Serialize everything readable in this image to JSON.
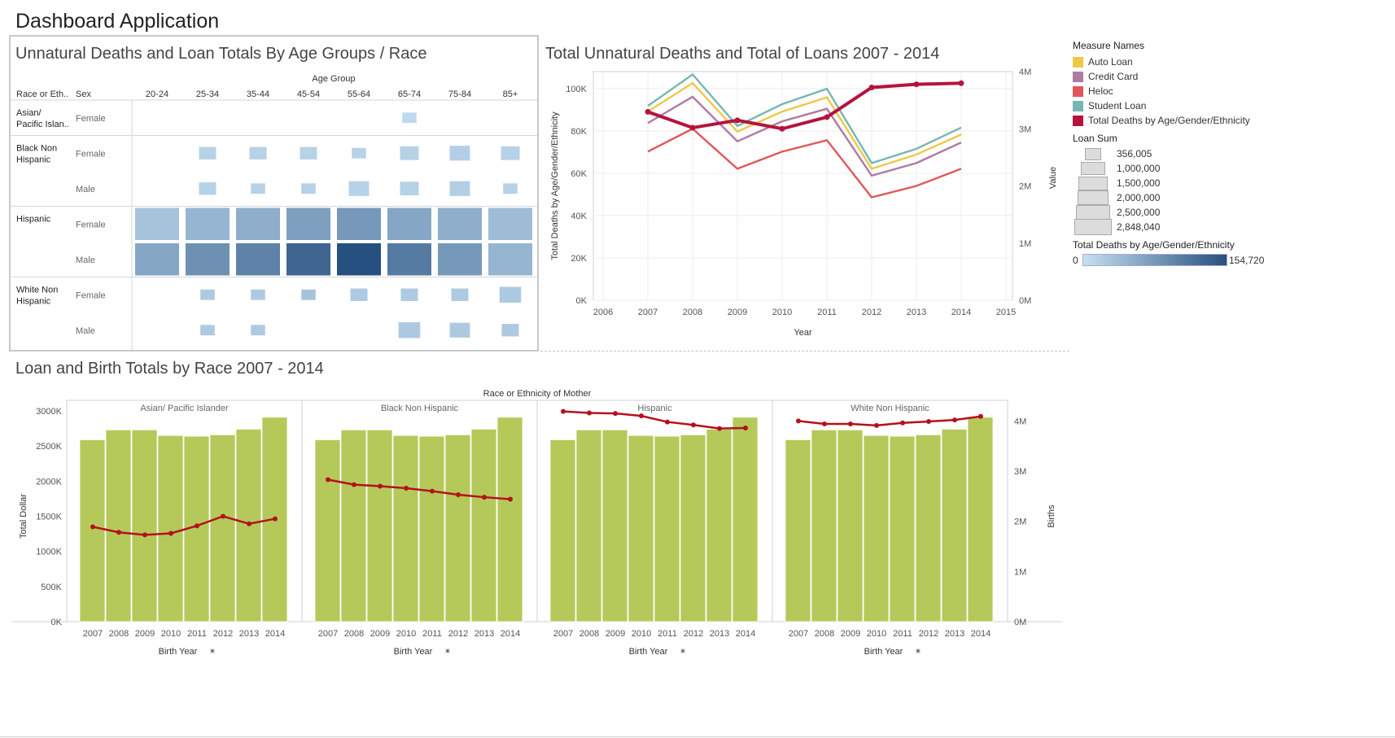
{
  "app": {
    "title": "Dashboard Application"
  },
  "colors": {
    "auto_loan": "#edc948",
    "credit_card": "#b07aa1",
    "heloc": "#e15759",
    "student_loan": "#76b7b2",
    "total_deaths": "#b5133d",
    "bar": "#b5c95a",
    "births_line": "#b5101e",
    "heat_low": "#c6e0f3",
    "heat_high": "#26507f"
  },
  "chart_data": [
    {
      "type": "heatmap",
      "title": "Unnatural Deaths and Loan Totals By Age Groups / Race",
      "column_group_label": "Age Group",
      "row_header_1": "Race or Eth..",
      "row_header_2": "Sex",
      "columns": [
        "20-24",
        "25-34",
        "35-44",
        "45-54",
        "55-64",
        "65-74",
        "75-84",
        "85+"
      ],
      "groups": [
        {
          "race": "Asian/ Pacific Islan..",
          "rows": [
            {
              "sex": "Female",
              "cells": [
                null,
                null,
                null,
                null,
                null,
                [
                  0.35,
                  0.05
                ],
                null,
                null
              ]
            }
          ]
        },
        {
          "race": "Black Non Hispanic",
          "rows": [
            {
              "sex": "Female",
              "cells": [
                null,
                [
                  0.5,
                  0.1
                ],
                [
                  0.5,
                  0.1
                ],
                [
                  0.5,
                  0.1
                ],
                [
                  0.35,
                  0.1
                ],
                [
                  0.6,
                  0.1
                ],
                [
                  0.7,
                  0.12
                ],
                [
                  0.6,
                  0.1
                ]
              ]
            },
            {
              "sex": "Male",
              "cells": [
                null,
                [
                  0.5,
                  0.1
                ],
                [
                  0.35,
                  0.1
                ],
                [
                  0.35,
                  0.1
                ],
                [
                  0.7,
                  0.1
                ],
                [
                  0.6,
                  0.1
                ],
                [
                  0.7,
                  0.12
                ],
                [
                  0.35,
                  0.1
                ]
              ]
            }
          ]
        },
        {
          "race": "Hispanic",
          "rows": [
            {
              "sex": "Female",
              "cells": [
                [
                  1,
                  0.2
                ],
                [
                  1,
                  0.3
                ],
                [
                  1,
                  0.35
                ],
                [
                  1,
                  0.45
                ],
                [
                  1,
                  0.5
                ],
                [
                  1,
                  0.4
                ],
                [
                  1,
                  0.35
                ],
                [
                  1,
                  0.25
                ]
              ]
            },
            {
              "sex": "Male",
              "cells": [
                [
                  1,
                  0.4
                ],
                [
                  1,
                  0.55
                ],
                [
                  1,
                  0.65
                ],
                [
                  1,
                  0.85
                ],
                [
                  1,
                  1.0
                ],
                [
                  1,
                  0.7
                ],
                [
                  1,
                  0.5
                ],
                [
                  1,
                  0.3
                ]
              ]
            }
          ]
        },
        {
          "race": "White Non Hispanic",
          "rows": [
            {
              "sex": "Female",
              "cells": [
                null,
                [
                  0.35,
                  0.15
                ],
                [
                  0.35,
                  0.15
                ],
                [
                  0.35,
                  0.2
                ],
                [
                  0.5,
                  0.15
                ],
                [
                  0.5,
                  0.15
                ],
                [
                  0.5,
                  0.15
                ],
                [
                  0.8,
                  0.15
                ]
              ]
            },
            {
              "sex": "Male",
              "cells": [
                null,
                [
                  0.35,
                  0.15
                ],
                [
                  0.35,
                  0.15
                ],
                null,
                null,
                [
                  0.8,
                  0.15
                ],
                [
                  0.7,
                  0.15
                ],
                [
                  0.5,
                  0.15
                ]
              ]
            }
          ]
        }
      ]
    },
    {
      "type": "line",
      "title": "Total Unnatural Deaths and Total of Loans 2007 - 2014",
      "xlabel": "Year",
      "ylabel": "Total Deaths by Age/Gender/Ethnicity",
      "y2label": "Value",
      "x_ticks": [
        "2006",
        "2007",
        "2008",
        "2009",
        "2010",
        "2011",
        "2012",
        "2013",
        "2014",
        "2015"
      ],
      "xlim": [
        2006,
        2015
      ],
      "ylim": [
        0,
        108000
      ],
      "y2lim": [
        0,
        4000000
      ],
      "y_ticks": [
        "0K",
        "20K",
        "40K",
        "60K",
        "80K",
        "100K"
      ],
      "y2_ticks": [
        "0M",
        "1M",
        "2M",
        "3M",
        "4M"
      ],
      "x": [
        2007,
        2008,
        2009,
        2010,
        2011,
        2012,
        2013,
        2014
      ],
      "series": [
        {
          "name": "Auto Loan",
          "axis": "right",
          "values": [
            3300000,
            3800000,
            2950000,
            3300000,
            3550000,
            2300000,
            2550000,
            2900000
          ]
        },
        {
          "name": "Credit Card",
          "axis": "right",
          "values": [
            3100000,
            3560000,
            2780000,
            3130000,
            3350000,
            2180000,
            2400000,
            2760000
          ]
        },
        {
          "name": "Heloc",
          "axis": "right",
          "values": [
            2600000,
            3000000,
            2300000,
            2600000,
            2800000,
            1800000,
            2000000,
            2300000
          ]
        },
        {
          "name": "Student Loan",
          "axis": "right",
          "values": [
            3400000,
            3950000,
            3050000,
            3430000,
            3700000,
            2400000,
            2650000,
            3020000
          ]
        },
        {
          "name": "Total Deaths by Age/Gender/Ethnicity",
          "axis": "left",
          "values": [
            89000,
            81500,
            85000,
            81000,
            86500,
            100500,
            102000,
            102500
          ]
        }
      ]
    },
    {
      "type": "bar",
      "title": "Loan and Birth Totals by Race 2007 - 2014",
      "group_label": "Race or Ethnicity of Mother",
      "xlabel": "Birth Year",
      "ylabel": "Total Dollar",
      "y2label": "Births",
      "ylim": [
        0,
        3000000
      ],
      "y_ticks": [
        "0K",
        "500K",
        "1000K",
        "1500K",
        "2000K",
        "2500K",
        "3000K"
      ],
      "y2lim": [
        0,
        4200000
      ],
      "y2_ticks": [
        "0M",
        "1M",
        "2M",
        "3M",
        "4M"
      ],
      "categories": [
        "2007",
        "2008",
        "2009",
        "2010",
        "2011",
        "2012",
        "2013",
        "2014"
      ],
      "panels": [
        {
          "name": "Asian/ Pacific Islander",
          "bars": [
            2590000,
            2730000,
            2730000,
            2650000,
            2640000,
            2660000,
            2740000,
            2910000
          ],
          "births": [
            1890000,
            1780000,
            1730000,
            1760000,
            1910000,
            2100000,
            1950000,
            2050000
          ]
        },
        {
          "name": "Black Non Hispanic",
          "bars": [
            2590000,
            2730000,
            2730000,
            2650000,
            2640000,
            2660000,
            2740000,
            2910000
          ],
          "births": [
            2830000,
            2730000,
            2700000,
            2660000,
            2600000,
            2530000,
            2480000,
            2440000
          ]
        },
        {
          "name": "Hispanic",
          "bars": [
            2590000,
            2730000,
            2730000,
            2650000,
            2640000,
            2660000,
            2740000,
            2910000
          ],
          "births": [
            4190000,
            4160000,
            4150000,
            4100000,
            3980000,
            3920000,
            3850000,
            3860000
          ]
        },
        {
          "name": "White Non Hispanic",
          "bars": [
            2590000,
            2730000,
            2730000,
            2650000,
            2640000,
            2660000,
            2740000,
            2910000
          ],
          "births": [
            4000000,
            3940000,
            3940000,
            3910000,
            3960000,
            3990000,
            4020000,
            4090000
          ]
        }
      ]
    }
  ],
  "legend": {
    "measure_title": "Measure Names",
    "measures": [
      {
        "label": "Auto Loan",
        "color": "#edc948"
      },
      {
        "label": "Credit Card",
        "color": "#b07aa1"
      },
      {
        "label": "Heloc",
        "color": "#e15759"
      },
      {
        "label": "Student Loan",
        "color": "#76b7b2"
      },
      {
        "label": "Total Deaths by Age/Gender/Ethnicity",
        "color": "#b5133d"
      }
    ],
    "size_title": "Loan Sum",
    "sizes": [
      "356,005",
      "1,000,000",
      "1,500,000",
      "2,000,000",
      "2,500,000",
      "2,848,040"
    ],
    "color_title": "Total Deaths by Age/Gender/Ethnicity",
    "color_min": "0",
    "color_max": "154,720"
  }
}
